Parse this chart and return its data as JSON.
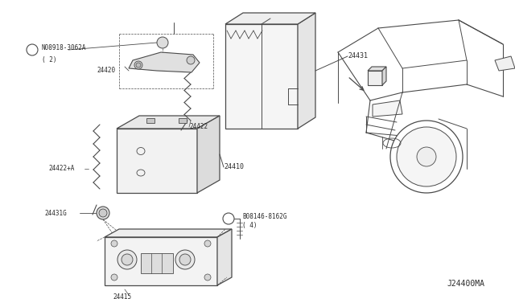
{
  "bg_color": "#ffffff",
  "line_color": "#4a4a4a",
  "text_color": "#2a2a2a",
  "diagram_code": "J24400MA",
  "parts": {
    "battery_strap": "N08918-3062A",
    "battery_strap2": "( 2)",
    "terminal_neg": "24420",
    "cable_neg": "24422+A",
    "battery_cover_label": "24431",
    "battery_cable_label": "24422",
    "battery_main_label": "24410",
    "bracket_ground_label": "24431G",
    "battery_tray_label": "24415",
    "bolt_label": "B08146-8162G",
    "bolt_label2": "( 4)"
  }
}
